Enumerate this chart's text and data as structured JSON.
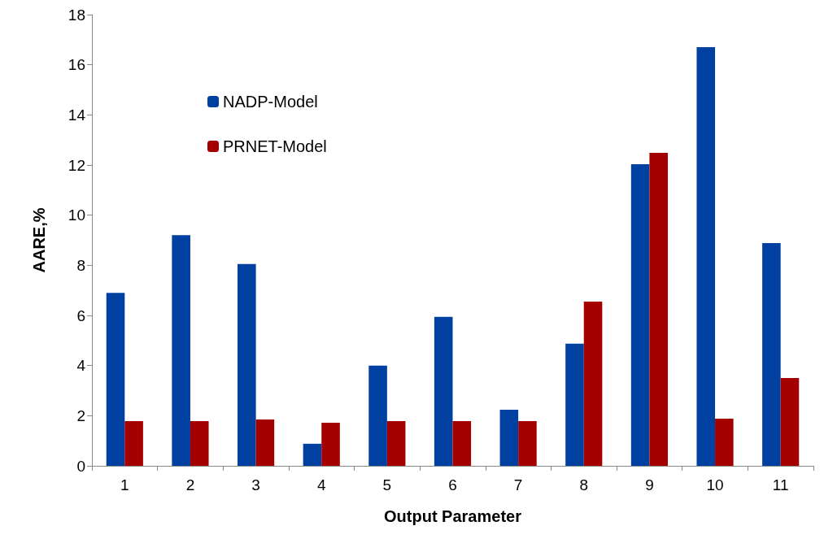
{
  "chart_data": {
    "type": "bar",
    "xlabel": "Output Parameter",
    "ylabel": "AARE,%",
    "categories": [
      "1",
      "2",
      "3",
      "4",
      "5",
      "6",
      "7",
      "8",
      "9",
      "10",
      "11"
    ],
    "series": [
      {
        "name": "NADP-Model",
        "color": "#0040a0",
        "values": [
          6.9,
          9.2,
          8.05,
          0.88,
          4.0,
          5.94,
          2.24,
          4.87,
          12.03,
          16.7,
          8.89
        ]
      },
      {
        "name": "PRNET-Model",
        "color": "#a50000",
        "values": [
          1.78,
          1.78,
          1.85,
          1.72,
          1.78,
          1.78,
          1.78,
          6.55,
          12.49,
          1.88,
          3.5
        ]
      }
    ],
    "ylim": [
      0,
      18
    ],
    "yticks": [
      0,
      2,
      4,
      6,
      8,
      10,
      12,
      14,
      16,
      18
    ],
    "grid": false,
    "legend": "top left"
  }
}
